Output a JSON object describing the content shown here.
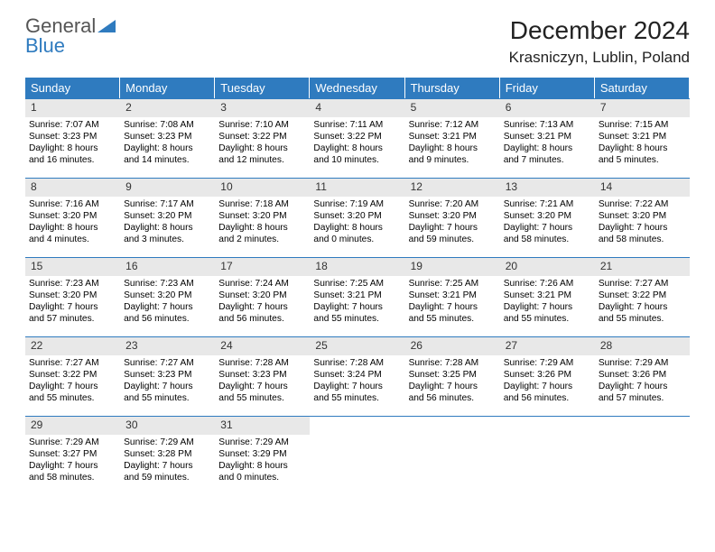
{
  "logo": {
    "top": "General",
    "bottom": "Blue"
  },
  "title": "December 2024",
  "location": "Krasniczyn, Lublin, Poland",
  "colors": {
    "header_bg": "#2f7bbf",
    "header_text": "#ffffff",
    "daynum_bg": "#e8e8e8",
    "rule": "#2f7bbf",
    "logo_blue": "#2f7bbf",
    "logo_gray": "#555555"
  },
  "dow": [
    "Sunday",
    "Monday",
    "Tuesday",
    "Wednesday",
    "Thursday",
    "Friday",
    "Saturday"
  ],
  "padding_before": 0,
  "days": [
    {
      "n": 1,
      "sr": "7:07 AM",
      "ss": "3:23 PM",
      "dh": 8,
      "dm": 16
    },
    {
      "n": 2,
      "sr": "7:08 AM",
      "ss": "3:23 PM",
      "dh": 8,
      "dm": 14
    },
    {
      "n": 3,
      "sr": "7:10 AM",
      "ss": "3:22 PM",
      "dh": 8,
      "dm": 12
    },
    {
      "n": 4,
      "sr": "7:11 AM",
      "ss": "3:22 PM",
      "dh": 8,
      "dm": 10
    },
    {
      "n": 5,
      "sr": "7:12 AM",
      "ss": "3:21 PM",
      "dh": 8,
      "dm": 9
    },
    {
      "n": 6,
      "sr": "7:13 AM",
      "ss": "3:21 PM",
      "dh": 8,
      "dm": 7
    },
    {
      "n": 7,
      "sr": "7:15 AM",
      "ss": "3:21 PM",
      "dh": 8,
      "dm": 5
    },
    {
      "n": 8,
      "sr": "7:16 AM",
      "ss": "3:20 PM",
      "dh": 8,
      "dm": 4
    },
    {
      "n": 9,
      "sr": "7:17 AM",
      "ss": "3:20 PM",
      "dh": 8,
      "dm": 3
    },
    {
      "n": 10,
      "sr": "7:18 AM",
      "ss": "3:20 PM",
      "dh": 8,
      "dm": 2
    },
    {
      "n": 11,
      "sr": "7:19 AM",
      "ss": "3:20 PM",
      "dh": 8,
      "dm": 0
    },
    {
      "n": 12,
      "sr": "7:20 AM",
      "ss": "3:20 PM",
      "dh": 7,
      "dm": 59
    },
    {
      "n": 13,
      "sr": "7:21 AM",
      "ss": "3:20 PM",
      "dh": 7,
      "dm": 58
    },
    {
      "n": 14,
      "sr": "7:22 AM",
      "ss": "3:20 PM",
      "dh": 7,
      "dm": 58
    },
    {
      "n": 15,
      "sr": "7:23 AM",
      "ss": "3:20 PM",
      "dh": 7,
      "dm": 57
    },
    {
      "n": 16,
      "sr": "7:23 AM",
      "ss": "3:20 PM",
      "dh": 7,
      "dm": 56
    },
    {
      "n": 17,
      "sr": "7:24 AM",
      "ss": "3:20 PM",
      "dh": 7,
      "dm": 56
    },
    {
      "n": 18,
      "sr": "7:25 AM",
      "ss": "3:21 PM",
      "dh": 7,
      "dm": 55
    },
    {
      "n": 19,
      "sr": "7:25 AM",
      "ss": "3:21 PM",
      "dh": 7,
      "dm": 55
    },
    {
      "n": 20,
      "sr": "7:26 AM",
      "ss": "3:21 PM",
      "dh": 7,
      "dm": 55
    },
    {
      "n": 21,
      "sr": "7:27 AM",
      "ss": "3:22 PM",
      "dh": 7,
      "dm": 55
    },
    {
      "n": 22,
      "sr": "7:27 AM",
      "ss": "3:22 PM",
      "dh": 7,
      "dm": 55
    },
    {
      "n": 23,
      "sr": "7:27 AM",
      "ss": "3:23 PM",
      "dh": 7,
      "dm": 55
    },
    {
      "n": 24,
      "sr": "7:28 AM",
      "ss": "3:23 PM",
      "dh": 7,
      "dm": 55
    },
    {
      "n": 25,
      "sr": "7:28 AM",
      "ss": "3:24 PM",
      "dh": 7,
      "dm": 55
    },
    {
      "n": 26,
      "sr": "7:28 AM",
      "ss": "3:25 PM",
      "dh": 7,
      "dm": 56
    },
    {
      "n": 27,
      "sr": "7:29 AM",
      "ss": "3:26 PM",
      "dh": 7,
      "dm": 56
    },
    {
      "n": 28,
      "sr": "7:29 AM",
      "ss": "3:26 PM",
      "dh": 7,
      "dm": 57
    },
    {
      "n": 29,
      "sr": "7:29 AM",
      "ss": "3:27 PM",
      "dh": 7,
      "dm": 58
    },
    {
      "n": 30,
      "sr": "7:29 AM",
      "ss": "3:28 PM",
      "dh": 7,
      "dm": 59
    },
    {
      "n": 31,
      "sr": "7:29 AM",
      "ss": "3:29 PM",
      "dh": 8,
      "dm": 0
    }
  ],
  "labels": {
    "sunrise": "Sunrise:",
    "sunset": "Sunset:",
    "daylight": "Daylight:",
    "hours": "hours",
    "and": "and",
    "minutes": "minutes."
  }
}
